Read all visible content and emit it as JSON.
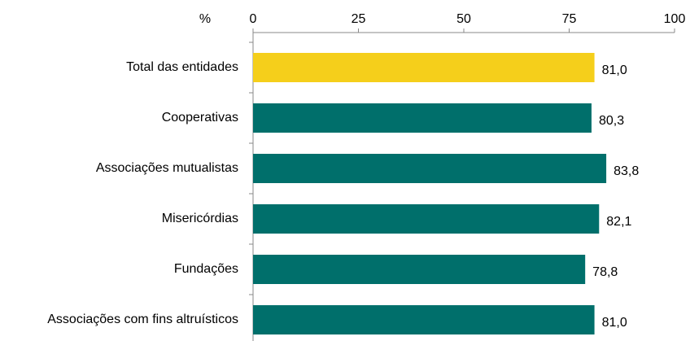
{
  "chart_data": {
    "type": "bar",
    "orientation": "horizontal",
    "axis_label": "%",
    "categories": [
      "Total das entidades",
      "Cooperativas",
      "Associações mutualistas",
      "Misericórdias",
      "Fundações",
      "Associações com fins altruísticos"
    ],
    "values": [
      81.0,
      80.3,
      83.8,
      82.1,
      78.8,
      81.0
    ],
    "value_labels": [
      "81,0",
      "80,3",
      "83,8",
      "82,1",
      "78,8",
      "81,0"
    ],
    "colors": [
      "#f5cf1b",
      "#006f6b",
      "#006f6b",
      "#006f6b",
      "#006f6b",
      "#006f6b"
    ],
    "xlim": [
      0,
      100
    ],
    "xticks": [
      0,
      25,
      50,
      75,
      100
    ],
    "grid": false
  }
}
